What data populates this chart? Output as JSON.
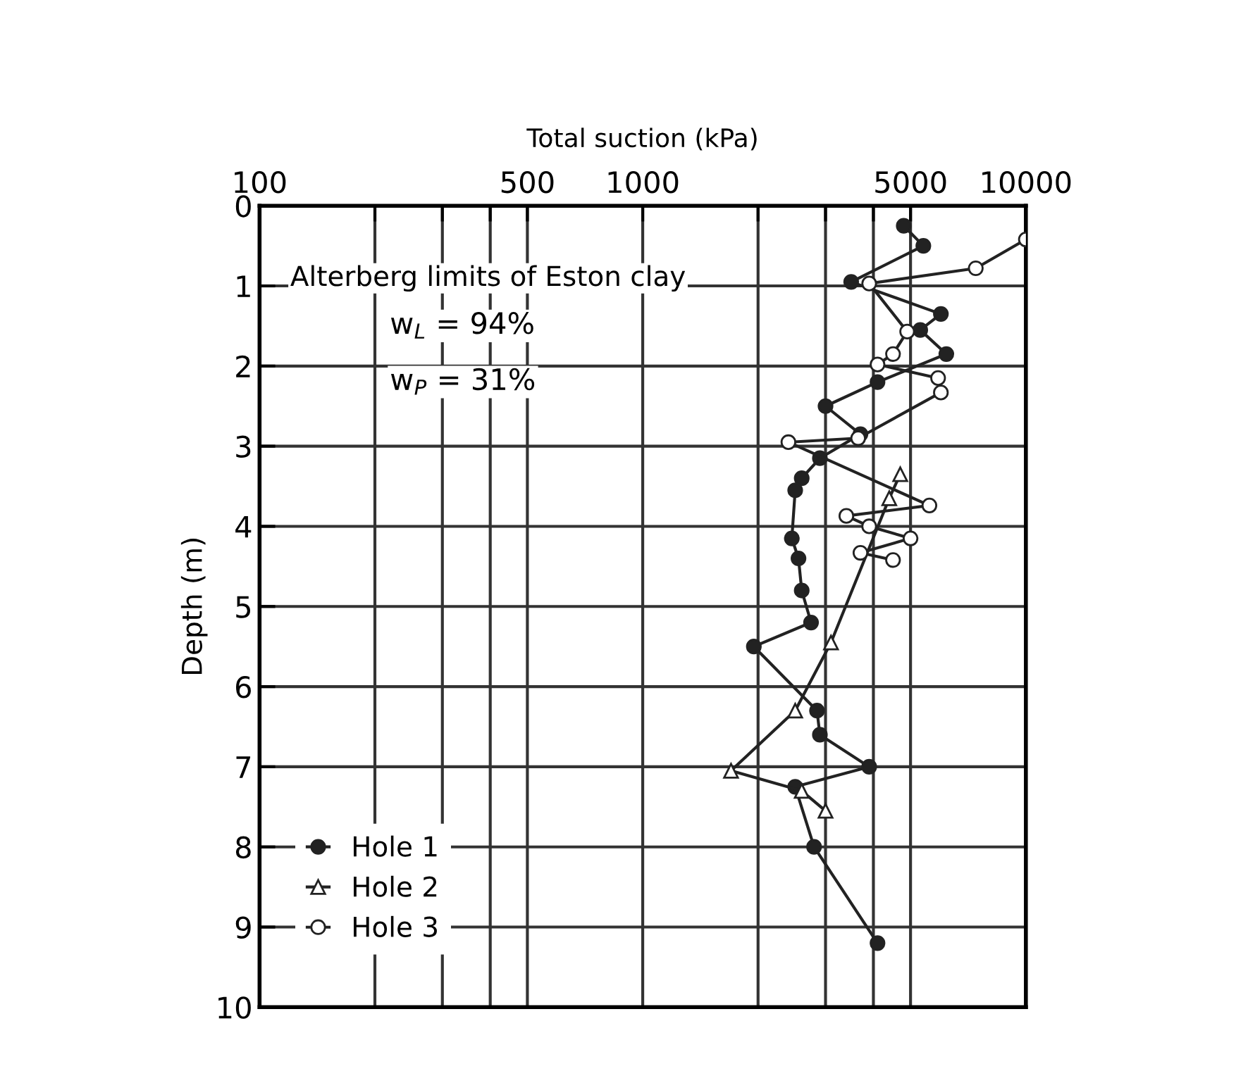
{
  "chart_data": {
    "type": "line",
    "xlabel": "Total suction (kPa)",
    "ylabel": "Depth (m)",
    "log": "x",
    "xlim": [
      100,
      10000
    ],
    "xticks": [
      100,
      {
        "value": 200,
        "label": null
      },
      {
        "value": 300,
        "label": null
      },
      {
        "value": 400,
        "label": null
      },
      500,
      1000,
      {
        "value": 2000,
        "label": null
      },
      {
        "value": 3000,
        "label": null
      },
      {
        "value": 4000,
        "label": null
      },
      5000,
      10000
    ],
    "ylim": [
      10,
      0
    ],
    "yticks": [
      0,
      1,
      2,
      3,
      4,
      5,
      6,
      7,
      8,
      9,
      10
    ],
    "grid": true,
    "legend": "bottom left",
    "annotations": [
      "Alterberg limits of Eston clay",
      "w$_{L}$ = 94%",
      "w$_{P}$ = 31%"
    ],
    "series": [
      {
        "name": "Hole 1",
        "color": "#222222",
        "marker": "circle",
        "x": [
          4800,
          5400,
          3500,
          6000,
          5300,
          6200,
          4100,
          3000,
          3700,
          2900,
          2600,
          2500,
          2450,
          2550,
          2600,
          2750,
          1950,
          2850,
          2900,
          3900,
          2500,
          2800,
          4100
        ],
        "values": [
          0.25,
          0.5,
          0.95,
          1.35,
          1.55,
          1.85,
          2.2,
          2.5,
          2.85,
          3.15,
          3.4,
          3.55,
          4.15,
          4.4,
          4.8,
          5.2,
          5.5,
          6.3,
          6.6,
          7.0,
          7.25,
          8.0,
          9.2
        ]
      },
      {
        "name": "Hole 2",
        "color": "#ffffff",
        "marker": "triangle",
        "x": [
          4700,
          4400,
          3100,
          2500,
          1700,
          2600,
          3000
        ],
        "values": [
          3.35,
          3.65,
          5.45,
          6.3,
          7.05,
          7.3,
          7.55
        ]
      },
      {
        "name": "Hole 3",
        "color": "#ffffff",
        "marker": "circle",
        "x": [
          10000,
          7400,
          3900,
          4900,
          4500,
          4100,
          5900,
          6000,
          3650,
          2400,
          5600,
          3400,
          3900,
          5000,
          3700,
          4500
        ],
        "values": [
          0.42,
          0.78,
          0.97,
          1.57,
          1.85,
          1.98,
          2.15,
          2.33,
          2.9,
          2.95,
          3.74,
          3.87,
          4.0,
          4.15,
          4.33,
          4.42
        ]
      }
    ]
  }
}
